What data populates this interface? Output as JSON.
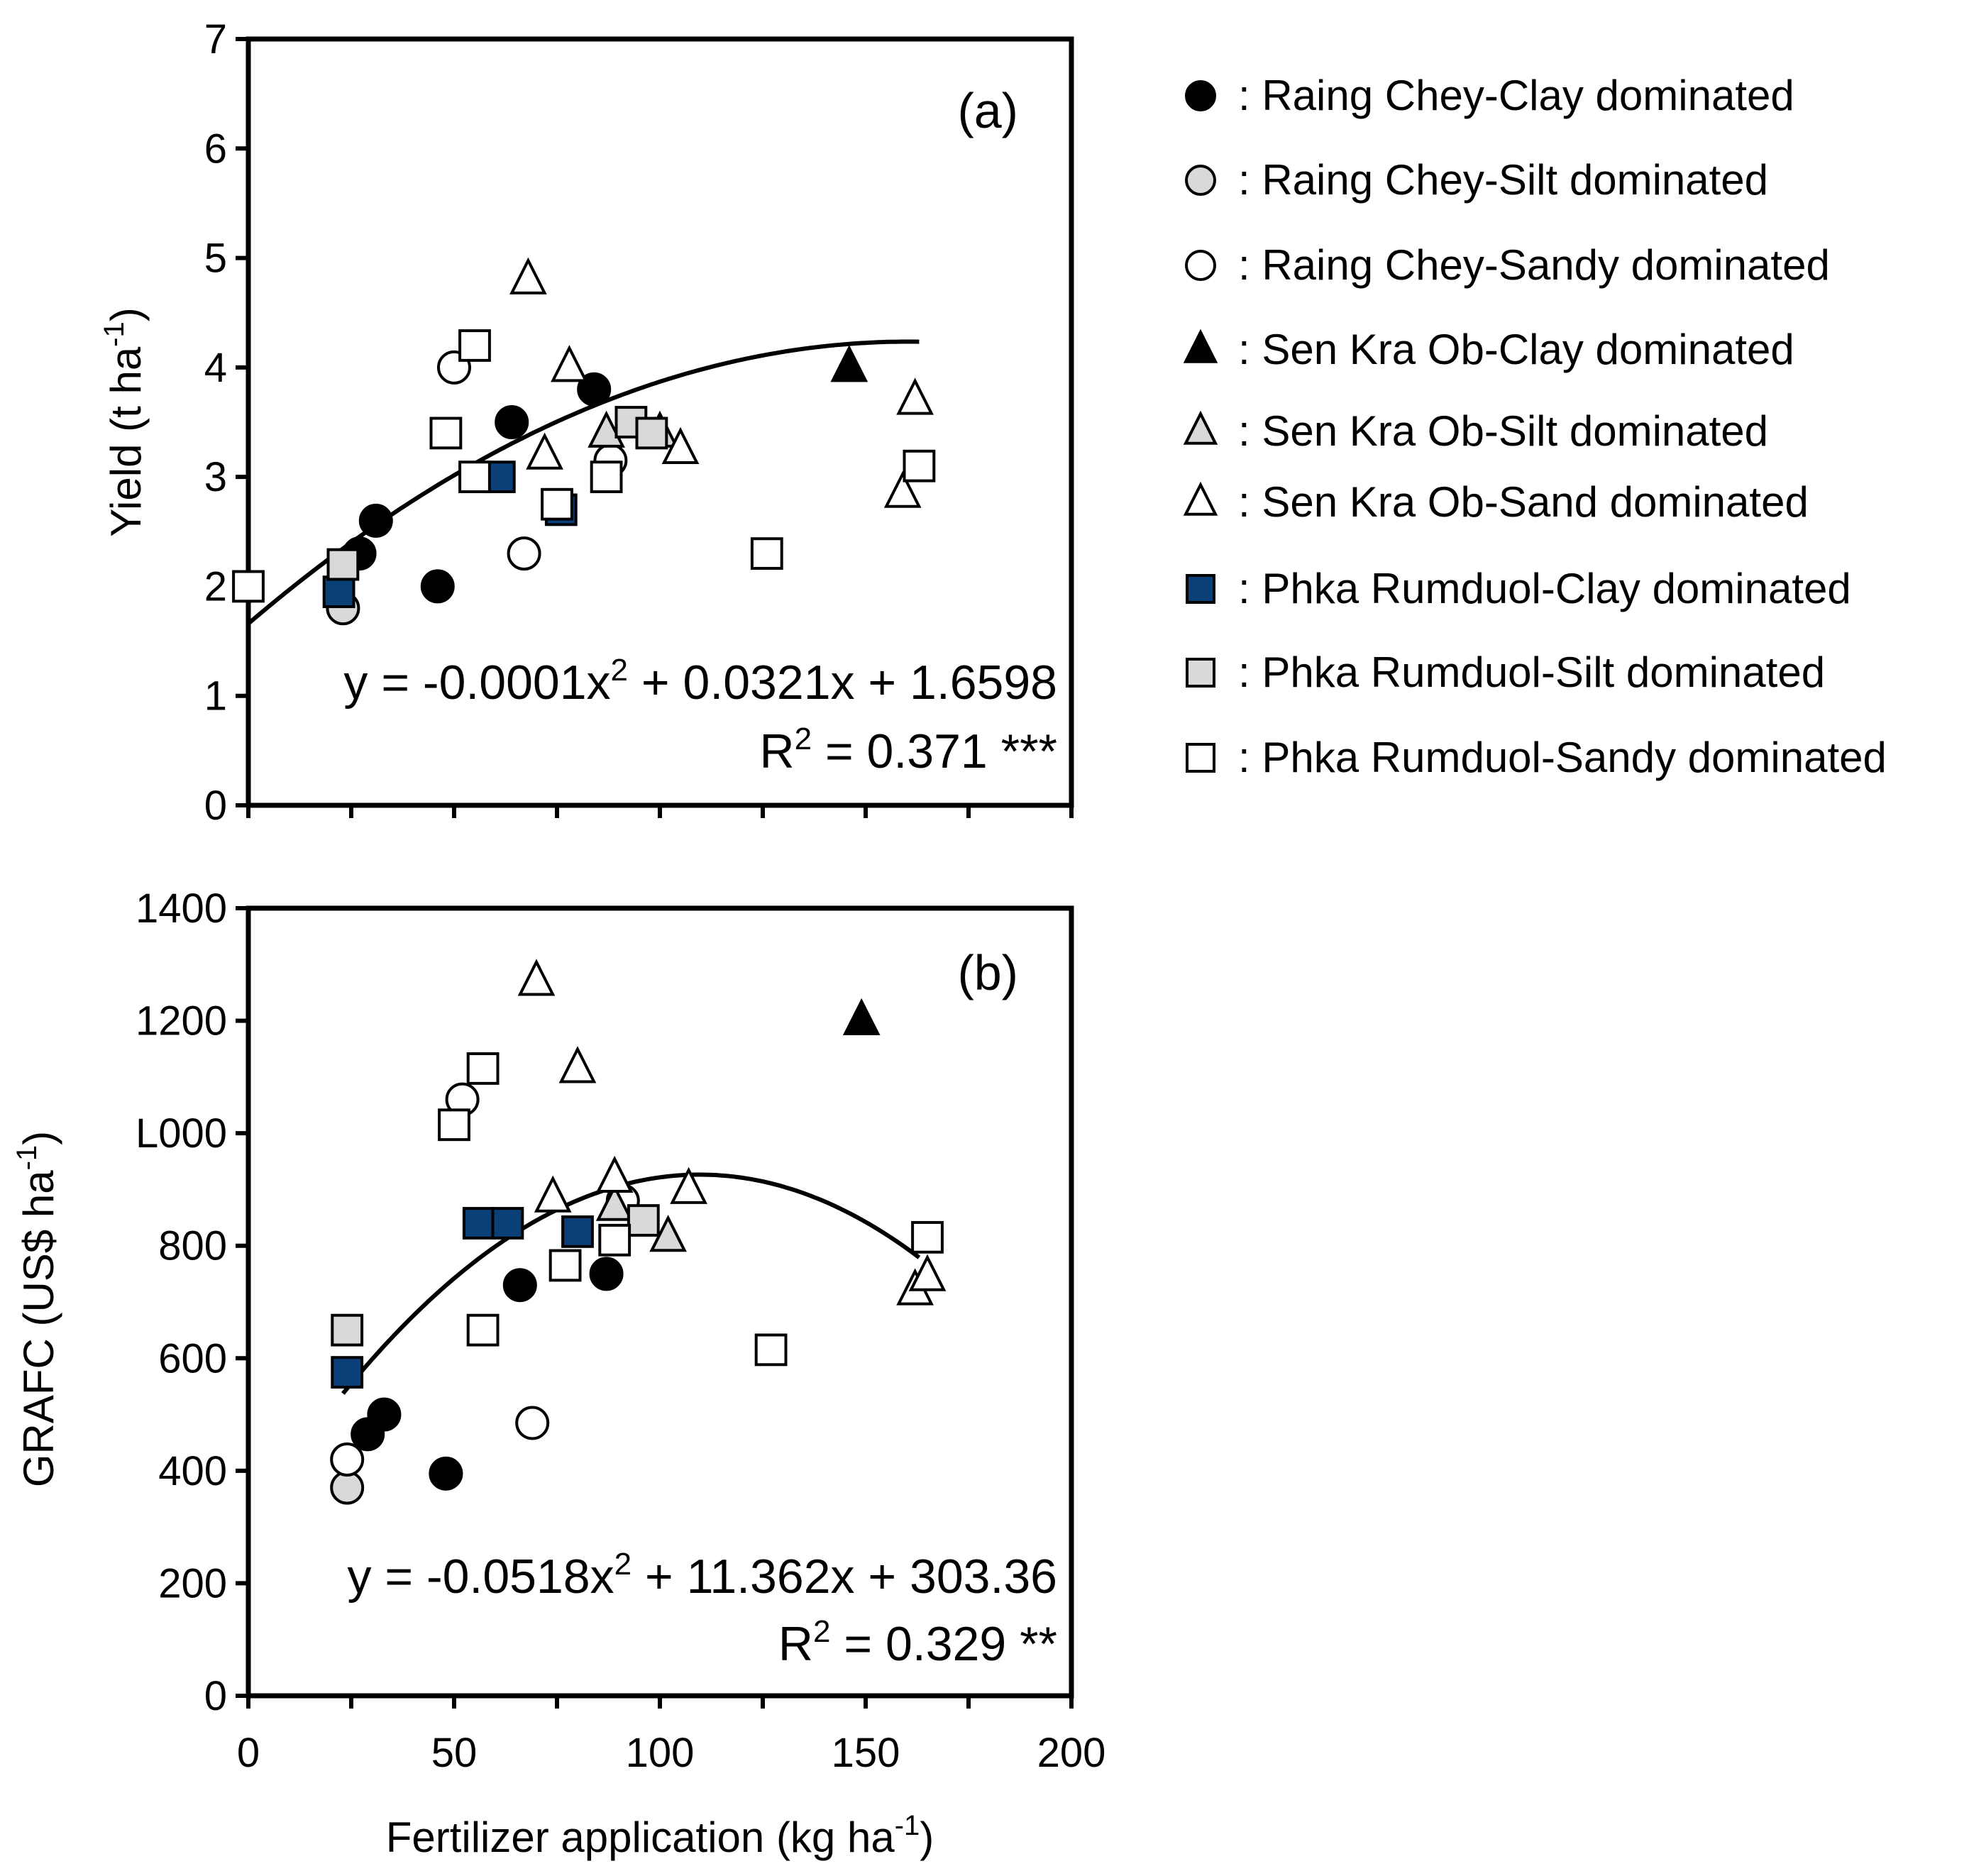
{
  "colors": {
    "black": "#000000",
    "gray": "#d9d9d9",
    "white": "#ffffff",
    "blue": "#0b3f78"
  },
  "legend": [
    {
      "label": ": Raing Chey-Clay dominated",
      "marker": "circle",
      "fill": "black"
    },
    {
      "label": ": Raing Chey-Silt dominated",
      "marker": "circle",
      "fill": "gray"
    },
    {
      "label": ": Raing Chey-Sandy dominated",
      "marker": "circle",
      "fill": "white"
    },
    {
      "label": ": Sen Kra Ob-Clay dominated",
      "marker": "triangle",
      "fill": "black"
    },
    {
      "label": ": Sen Kra Ob-Silt dominated",
      "marker": "triangle",
      "fill": "gray"
    },
    {
      "label": ": Sen Kra Ob-Sand dominated",
      "marker": "triangle",
      "fill": "white"
    },
    {
      "label": ": Phka Rumduol-Clay dominated",
      "marker": "square",
      "fill": "blue"
    },
    {
      "label": ": Phka Rumduol-Silt dominated",
      "marker": "square",
      "fill": "gray"
    },
    {
      "label": ": Phka Rumduol-Sandy dominated",
      "marker": "square",
      "fill": "white"
    }
  ],
  "chart_data": [
    {
      "type": "scatter",
      "panel": "(a)",
      "ylabel": "Yield (t ha-1)",
      "ylabel_parts": {
        "main": "Yield (t ha",
        "sup": "-1",
        "end": ")"
      },
      "xlabel": "",
      "xlim": [
        0,
        200
      ],
      "ylim": [
        0,
        7
      ],
      "yticks": [
        "0",
        "1",
        "2",
        "3",
        "4",
        "5",
        "6",
        "7"
      ],
      "xticks": [],
      "equation": {
        "pre": "y = -0.0001x",
        "sup": "2",
        "post": " + 0.0321x + 1.6598"
      },
      "r2": {
        "pre": "R",
        "sup": "2",
        "post": " = 0.371 ***"
      },
      "trend": {
        "a": -0.0001,
        "b": 0.0321,
        "c": 1.6598,
        "x_range": [
          0,
          163
        ]
      },
      "series": [
        {
          "name": "Raing Chey-Clay dominated",
          "points": [
            [
              27,
              2.3
            ],
            [
              31,
              2.6
            ],
            [
              46,
              2.0
            ],
            [
              64,
              3.5
            ],
            [
              84,
              3.8
            ]
          ]
        },
        {
          "name": "Raing Chey-Silt dominated",
          "points": [
            [
              23,
              1.8
            ]
          ]
        },
        {
          "name": "Raing Chey-Sandy dominated",
          "points": [
            [
              50,
              4.0
            ],
            [
              67,
              2.3
            ],
            [
              88,
              3.15
            ]
          ]
        },
        {
          "name": "Sen Kra Ob-Clay dominated",
          "points": [
            [
              146,
              4.0
            ]
          ]
        },
        {
          "name": "Sen Kra Ob-Silt dominated",
          "points": [
            [
              87,
              3.4
            ],
            [
              100,
              3.4
            ]
          ]
        },
        {
          "name": "Sen Kra Ob-Sand dominated",
          "points": [
            [
              68,
              4.8
            ],
            [
              78,
              4.0
            ],
            [
              72,
              3.2
            ],
            [
              105,
              3.25
            ],
            [
              159,
              2.85
            ],
            [
              162,
              3.7
            ]
          ]
        },
        {
          "name": "Phka Rumduol-Clay dominated",
          "points": [
            [
              22,
              1.95
            ],
            [
              61,
              3.0
            ],
            [
              76,
              2.7
            ]
          ]
        },
        {
          "name": "Phka Rumduol-Silt dominated",
          "points": [
            [
              23,
              2.2
            ],
            [
              93,
              3.5
            ],
            [
              98,
              3.4
            ]
          ]
        },
        {
          "name": "Phka Rumduol-Sandy dominated",
          "points": [
            [
              0,
              2.0
            ],
            [
              48,
              3.4
            ],
            [
              55,
              4.2
            ],
            [
              55,
              3.0
            ],
            [
              75,
              2.75
            ],
            [
              87,
              3.0
            ],
            [
              126,
              2.3
            ],
            [
              163,
              3.1
            ]
          ]
        }
      ]
    },
    {
      "type": "scatter",
      "panel": "(b)",
      "ylabel": "GRAFC (US$ ha-1)",
      "ylabel_parts": {
        "main": "GRAFC (US$ ha",
        "sup": "-1",
        "end": ")"
      },
      "xlabel": "Fertilizer application (kg ha-1)",
      "xlabel_parts": {
        "main": "Fertilizer application (kg ha",
        "sup": "-1",
        "end": ")"
      },
      "xlim": [
        0,
        200
      ],
      "ylim": [
        0,
        1400
      ],
      "yticks": [
        "0",
        "200",
        "400",
        "600",
        "800",
        "L000",
        "1200",
        "1400"
      ],
      "xticks": [
        "0",
        "50",
        "100",
        "150",
        "200"
      ],
      "equation": {
        "pre": "y = -0.0518x",
        "sup": "2",
        "post": " + 11.362x + 303.36"
      },
      "r2": {
        "pre": "R",
        "sup": "2",
        "post": " = 0.329 **"
      },
      "trend": {
        "a": -0.0518,
        "b": 11.362,
        "c": 303.36,
        "x_range": [
          23,
          163
        ]
      },
      "series": [
        {
          "name": "Raing Chey-Clay dominated",
          "points": [
            [
              29,
              465
            ],
            [
              33,
              500
            ],
            [
              48,
              395
            ],
            [
              66,
              730
            ],
            [
              87,
              750
            ]
          ]
        },
        {
          "name": "Raing Chey-Silt dominated",
          "points": [
            [
              24,
              370
            ]
          ]
        },
        {
          "name": "Raing Chey-Sandy dominated",
          "points": [
            [
              24,
              420
            ],
            [
              52,
              1060
            ],
            [
              69,
              485
            ],
            [
              91,
              880
            ]
          ]
        },
        {
          "name": "Sen Kra Ob-Clay dominated",
          "points": [
            [
              149,
              1200
            ]
          ]
        },
        {
          "name": "Sen Kra Ob-Silt dominated",
          "points": [
            [
              89,
              870
            ],
            [
              102,
              815
            ]
          ]
        },
        {
          "name": "Sen Kra Ob-Sand dominated",
          "points": [
            [
              70,
              1270
            ],
            [
              80,
              1115
            ],
            [
              74,
              885
            ],
            [
              89,
              920
            ],
            [
              107,
              900
            ],
            [
              162,
              720
            ],
            [
              165,
              745
            ]
          ]
        },
        {
          "name": "Phka Rumduol-Clay dominated",
          "points": [
            [
              24,
              575
            ],
            [
              56,
              840
            ],
            [
              63,
              840
            ],
            [
              80,
              825
            ]
          ]
        },
        {
          "name": "Phka Rumduol-Silt dominated",
          "points": [
            [
              24,
              650
            ],
            [
              96,
              845
            ]
          ]
        },
        {
          "name": "Phka Rumduol-Sandy dominated",
          "points": [
            [
              50,
              1015
            ],
            [
              57,
              1115
            ],
            [
              57,
              650
            ],
            [
              77,
              765
            ],
            [
              89,
              810
            ],
            [
              127,
              615
            ],
            [
              165,
              815
            ]
          ]
        }
      ]
    }
  ]
}
